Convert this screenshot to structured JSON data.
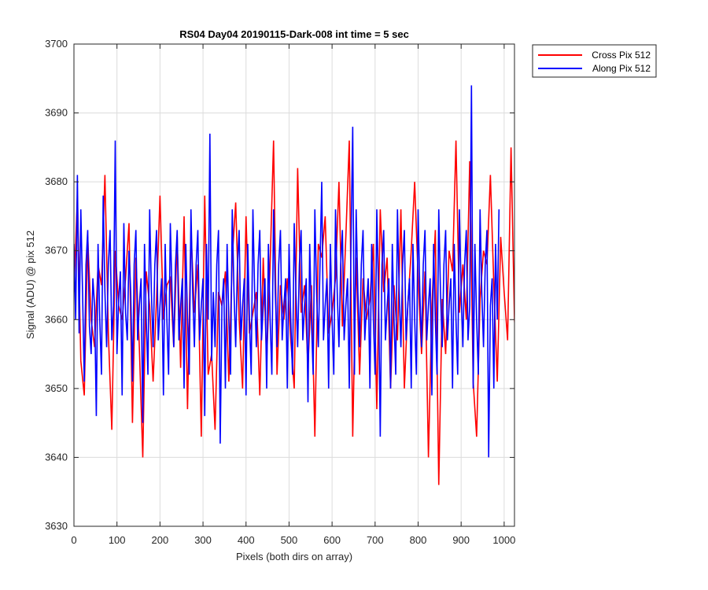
{
  "chart_data": {
    "type": "line",
    "title": "RS04 Day04 20190115-Dark-008 int time = 5 sec",
    "xlabel": "Pixels (both dirs on array)",
    "ylabel": "Signal (ADU) @ pix 512",
    "xlim": [
      0,
      1024
    ],
    "ylim": [
      3630,
      3700
    ],
    "xticks": [
      0,
      100,
      200,
      300,
      400,
      500,
      600,
      700,
      800,
      900,
      1000
    ],
    "yticks": [
      3630,
      3640,
      3650,
      3660,
      3670,
      3680,
      3690,
      3700
    ],
    "grid": true,
    "legend_position": "outside-top-right",
    "series": [
      {
        "name": "Cross Pix 512",
        "color": "#ff0000",
        "x_step": 8,
        "values": [
          3664,
          3678,
          3654,
          3649,
          3672,
          3660,
          3656,
          3668,
          3665,
          3681,
          3658,
          3644,
          3670,
          3662,
          3660,
          3666,
          3674,
          3645,
          3669,
          3656,
          3640,
          3667,
          3662,
          3651,
          3663,
          3678,
          3660,
          3665,
          3666,
          3656,
          3672,
          3653,
          3675,
          3647,
          3673,
          3661,
          3668,
          3643,
          3678,
          3652,
          3655,
          3644,
          3664,
          3662,
          3667,
          3651,
          3669,
          3677,
          3660,
          3650,
          3675,
          3658,
          3661,
          3664,
          3649,
          3669,
          3654,
          3668,
          3686,
          3652,
          3665,
          3660,
          3666,
          3657,
          3650,
          3682,
          3661,
          3665,
          3653,
          3665,
          3643,
          3671,
          3669,
          3675,
          3658,
          3661,
          3666,
          3680,
          3659,
          3672,
          3686,
          3643,
          3669,
          3652,
          3666,
          3660,
          3663,
          3671,
          3647,
          3676,
          3664,
          3669,
          3650,
          3665,
          3657,
          3676,
          3650,
          3662,
          3670,
          3680,
          3666,
          3655,
          3667,
          3640,
          3662,
          3673,
          3636,
          3663,
          3655,
          3670,
          3667,
          3686,
          3661,
          3668,
          3660,
          3683,
          3651,
          3643,
          3663,
          3670,
          3668,
          3681,
          3665,
          3651,
          3672,
          3664,
          3657,
          3685,
          3660,
          3653
        ]
      },
      {
        "name": "Along Pix 512",
        "color": "#0000ff",
        "x_step": 4,
        "values": [
          3671,
          3660,
          3681,
          3658,
          3676,
          3664,
          3651,
          3668,
          3673,
          3659,
          3655,
          3666,
          3662,
          3646,
          3671,
          3660,
          3652,
          3678,
          3664,
          3656,
          3668,
          3673,
          3657,
          3662,
          3686,
          3655,
          3663,
          3667,
          3649,
          3674,
          3661,
          3657,
          3670,
          3664,
          3651,
          3668,
          3673,
          3657,
          3662,
          3666,
          3645,
          3671,
          3660,
          3652,
          3676,
          3664,
          3656,
          3668,
          3673,
          3657,
          3662,
          3666,
          3649,
          3671,
          3660,
          3652,
          3674,
          3664,
          3656,
          3668,
          3673,
          3657,
          3662,
          3666,
          3650,
          3671,
          3660,
          3652,
          3676,
          3664,
          3656,
          3668,
          3673,
          3657,
          3662,
          3666,
          3646,
          3671,
          3660,
          3687,
          3654,
          3664,
          3656,
          3668,
          3673,
          3642,
          3662,
          3666,
          3650,
          3671,
          3660,
          3652,
          3676,
          3664,
          3656,
          3668,
          3673,
          3657,
          3662,
          3666,
          3649,
          3671,
          3660,
          3652,
          3676,
          3664,
          3656,
          3668,
          3673,
          3657,
          3662,
          3666,
          3650,
          3671,
          3660,
          3652,
          3676,
          3664,
          3656,
          3668,
          3673,
          3657,
          3662,
          3666,
          3650,
          3671,
          3660,
          3652,
          3674,
          3664,
          3656,
          3668,
          3673,
          3657,
          3662,
          3666,
          3648,
          3671,
          3660,
          3652,
          3676,
          3664,
          3656,
          3668,
          3680,
          3657,
          3662,
          3666,
          3650,
          3671,
          3660,
          3652,
          3676,
          3664,
          3656,
          3668,
          3673,
          3657,
          3662,
          3666,
          3650,
          3671,
          3688,
          3652,
          3676,
          3664,
          3656,
          3668,
          3673,
          3657,
          3662,
          3666,
          3650,
          3671,
          3660,
          3652,
          3676,
          3664,
          3643,
          3668,
          3673,
          3657,
          3662,
          3666,
          3650,
          3671,
          3660,
          3652,
          3676,
          3664,
          3656,
          3668,
          3673,
          3657,
          3662,
          3666,
          3650,
          3671,
          3660,
          3652,
          3676,
          3664,
          3656,
          3668,
          3673,
          3657,
          3662,
          3666,
          3649,
          3671,
          3660,
          3652,
          3676,
          3664,
          3656,
          3668,
          3673,
          3657,
          3662,
          3666,
          3650,
          3671,
          3660,
          3652,
          3676,
          3664,
          3656,
          3668,
          3673,
          3657,
          3662,
          3694,
          3650,
          3671,
          3660,
          3652,
          3676,
          3664,
          3656,
          3668,
          3673,
          3640,
          3662,
          3666,
          3650,
          3671,
          3660,
          3676
        ]
      }
    ]
  }
}
